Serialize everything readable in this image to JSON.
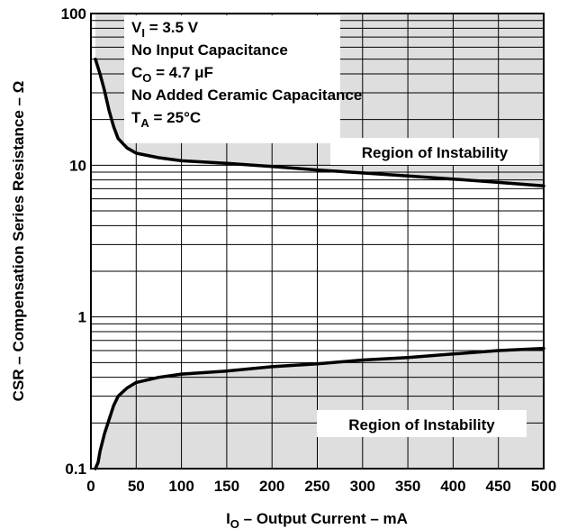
{
  "chart_data": {
    "type": "line",
    "xlabel": {
      "main": "I",
      "sub": "O",
      "rest": " – Output Current – mA"
    },
    "ylabel": "CSR – Compensation Series Resistance – Ω",
    "xlim": [
      0,
      500
    ],
    "ylim": [
      0.1,
      100
    ],
    "yscale": "log",
    "grid": true,
    "x_ticks": [
      "0",
      "50",
      "100",
      "150",
      "200",
      "250",
      "300",
      "350",
      "400",
      "450",
      "500"
    ],
    "y_ticks": [
      {
        "value": 0.1,
        "label": "0.1"
      },
      {
        "value": 1,
        "label": "1"
      },
      {
        "value": 10,
        "label": "10"
      },
      {
        "value": 100,
        "label": "100"
      }
    ],
    "annotation_lines": [
      {
        "main": "V",
        "sub": "I",
        "rest": " = 3.5 V"
      },
      {
        "main": "No Input Capacitance",
        "sub": "",
        "rest": ""
      },
      {
        "main": "C",
        "sub": "O",
        "rest": " = 4.7 μF"
      },
      {
        "main": "No Added Ceramic Capacitance",
        "sub": "",
        "rest": ""
      },
      {
        "main": "T",
        "sub": "A",
        "rest": " = 25°C"
      }
    ],
    "regions": [
      {
        "label": "Region of Instability",
        "position": "upper"
      },
      {
        "label": "Region of Instability",
        "position": "lower"
      }
    ],
    "series": [
      {
        "role": "upper-boundary",
        "x": [
          5,
          10,
          15,
          20,
          25,
          30,
          40,
          50,
          75,
          100,
          150,
          200,
          250,
          300,
          350,
          400,
          450,
          500
        ],
        "y": [
          50,
          40,
          31,
          23,
          18,
          15,
          13,
          12,
          11.2,
          10.7,
          10.3,
          9.8,
          9.3,
          8.9,
          8.5,
          8.1,
          7.7,
          7.3
        ]
      },
      {
        "role": "lower-boundary",
        "x": [
          5,
          8,
          10,
          15,
          20,
          25,
          30,
          40,
          50,
          75,
          100,
          150,
          200,
          250,
          300,
          350,
          400,
          450,
          500
        ],
        "y": [
          0.1,
          0.11,
          0.13,
          0.17,
          0.21,
          0.26,
          0.3,
          0.34,
          0.37,
          0.4,
          0.42,
          0.44,
          0.47,
          0.49,
          0.52,
          0.54,
          0.57,
          0.6,
          0.62
        ]
      }
    ],
    "colors": {
      "instability_fill": "#dedede",
      "curve": "#000000",
      "grid": "#000000"
    }
  }
}
